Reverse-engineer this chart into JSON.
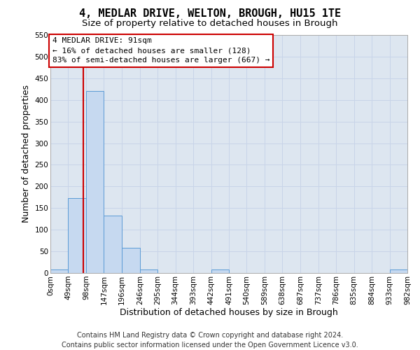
{
  "title": "4, MEDLAR DRIVE, WELTON, BROUGH, HU15 1TE",
  "subtitle": "Size of property relative to detached houses in Brough",
  "xlabel": "Distribution of detached houses by size in Brough",
  "ylabel": "Number of detached properties",
  "bin_edges": [
    0,
    49,
    98,
    147,
    196,
    246,
    295,
    344,
    393,
    442,
    491,
    540,
    589,
    638,
    687,
    737,
    786,
    835,
    884,
    933,
    982
  ],
  "bin_labels": [
    "0sqm",
    "49sqm",
    "98sqm",
    "147sqm",
    "196sqm",
    "246sqm",
    "295sqm",
    "344sqm",
    "393sqm",
    "442sqm",
    "491sqm",
    "540sqm",
    "589sqm",
    "638sqm",
    "687sqm",
    "737sqm",
    "786sqm",
    "835sqm",
    "884sqm",
    "933sqm",
    "982sqm"
  ],
  "counts": [
    8,
    173,
    421,
    133,
    58,
    8,
    0,
    0,
    0,
    8,
    0,
    0,
    0,
    0,
    0,
    0,
    0,
    0,
    0,
    8
  ],
  "bar_color": "#c6d9f0",
  "bar_edge_color": "#5b9bd5",
  "property_line_x": 91,
  "property_line_color": "#cc0000",
  "ylim": [
    0,
    550
  ],
  "yticks": [
    0,
    50,
    100,
    150,
    200,
    250,
    300,
    350,
    400,
    450,
    500,
    550
  ],
  "annotation_title": "4 MEDLAR DRIVE: 91sqm",
  "annotation_line1": "← 16% of detached houses are smaller (128)",
  "annotation_line2": "83% of semi-detached houses are larger (667) →",
  "annotation_box_color": "#ffffff",
  "annotation_box_edge": "#cc0000",
  "footer_line1": "Contains HM Land Registry data © Crown copyright and database right 2024.",
  "footer_line2": "Contains public sector information licensed under the Open Government Licence v3.0.",
  "bg_color": "#ffffff",
  "grid_color": "#c8d4e8",
  "title_fontsize": 11,
  "subtitle_fontsize": 9.5,
  "xlabel_fontsize": 9,
  "ylabel_fontsize": 9,
  "tick_fontsize": 7.5,
  "footer_fontsize": 7
}
